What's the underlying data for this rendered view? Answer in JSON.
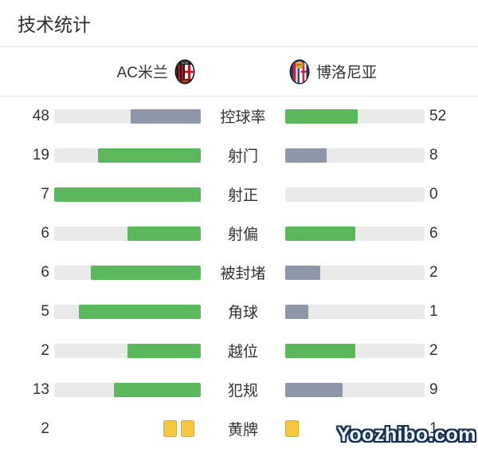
{
  "page": {
    "title": "技术统计",
    "watermark": "Yoozhibo.com"
  },
  "header": {
    "home_team": "AC米兰",
    "away_team": "博洛尼亚",
    "home_logo": "ac-milan-crest",
    "away_logo": "bologna-crest"
  },
  "colors": {
    "win": "#5cb85c",
    "lose": "#8d97a9",
    "track": "#eaeaea",
    "text": "#333333",
    "divider": "#e7e7e7",
    "yellow_card_fill": "#f6c840",
    "yellow_card_border": "#dca62f"
  },
  "chart_data": {
    "type": "bar",
    "title": "技术统计",
    "categories": [
      "控球率",
      "射门",
      "射正",
      "射偏",
      "被封堵",
      "角球",
      "越位",
      "犯规",
      "黄牌"
    ],
    "series": [
      {
        "name": "AC米兰",
        "values": [
          48,
          19,
          7,
          6,
          6,
          5,
          2,
          13,
          2
        ]
      },
      {
        "name": "博洛尼亚",
        "values": [
          52,
          8,
          0,
          6,
          2,
          1,
          2,
          9,
          1
        ]
      }
    ],
    "layout": "mirrored horizontal bars, values at outer edges, labels centered; higher value is green, lower is slate; 黄牌 row shown as yellow card icons"
  },
  "stats": [
    {
      "label": "控球率",
      "home": 48,
      "away": 52,
      "type": "bar"
    },
    {
      "label": "射门",
      "home": 19,
      "away": 8,
      "type": "bar"
    },
    {
      "label": "射正",
      "home": 7,
      "away": 0,
      "type": "bar"
    },
    {
      "label": "射偏",
      "home": 6,
      "away": 6,
      "type": "bar"
    },
    {
      "label": "被封堵",
      "home": 6,
      "away": 2,
      "type": "bar"
    },
    {
      "label": "角球",
      "home": 5,
      "away": 1,
      "type": "bar"
    },
    {
      "label": "越位",
      "home": 2,
      "away": 2,
      "type": "bar"
    },
    {
      "label": "犯规",
      "home": 13,
      "away": 9,
      "type": "bar"
    },
    {
      "label": "黄牌",
      "home": 2,
      "away": 1,
      "type": "cards"
    }
  ]
}
